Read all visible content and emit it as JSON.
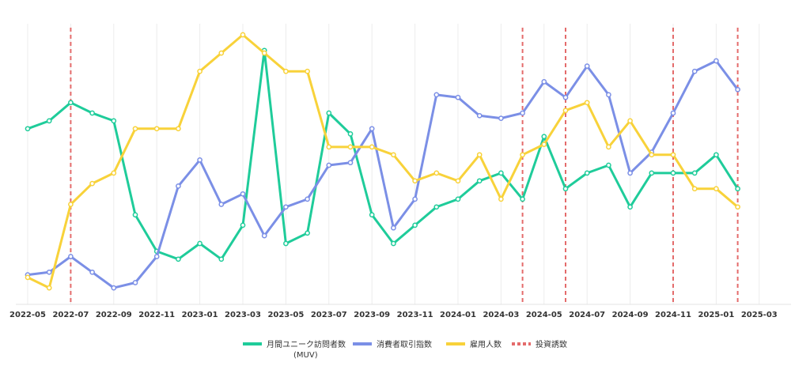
{
  "chart_data": {
    "type": "line",
    "x": [
      "2022-05",
      "2022-06",
      "2022-07",
      "2022-08",
      "2022-09",
      "2022-10",
      "2022-11",
      "2022-12",
      "2023-01",
      "2023-02",
      "2023-03",
      "2023-04",
      "2023-05",
      "2023-06",
      "2023-07",
      "2023-08",
      "2023-09",
      "2023-10",
      "2023-11",
      "2023-12",
      "2024-01",
      "2024-02",
      "2024-03",
      "2024-04",
      "2024-05",
      "2024-06",
      "2024-07",
      "2024-08",
      "2024-09",
      "2024-10",
      "2024-11",
      "2024-12",
      "2025-01",
      "2025-02"
    ],
    "tick_labels": [
      "2022-05",
      "2022-07",
      "2022-09",
      "2022-11",
      "2023-01",
      "2023-03",
      "2023-05",
      "2023-07",
      "2023-09",
      "2023-11",
      "2024-01",
      "2024-03",
      "2024-05",
      "2024-07",
      "2024-09",
      "2024-11",
      "2025-01",
      "2025-03"
    ],
    "ylim": [
      0,
      100
    ],
    "grid": "vertical",
    "legend_position": "bottom",
    "series": [
      {
        "name": "月間ユニーク訪問者数",
        "name_line2": "(MUV)",
        "color": "#1fcc9a",
        "values": [
          64,
          67,
          74,
          70,
          67,
          31,
          17,
          14,
          20,
          14,
          27,
          94,
          20,
          24,
          70,
          62,
          31,
          20,
          27,
          34,
          37,
          44,
          47,
          37,
          61,
          41,
          47,
          50,
          34,
          47,
          47,
          47,
          54,
          41
        ]
      },
      {
        "name": "消費者取引指数",
        "color": "#7b8fe6",
        "values": [
          8,
          9,
          15,
          9,
          3,
          5,
          15,
          42,
          52,
          35,
          39,
          23,
          34,
          37,
          50,
          51,
          64,
          26,
          37,
          77,
          76,
          69,
          68,
          70,
          82,
          76,
          88,
          77,
          47,
          55,
          70,
          86,
          90,
          79
        ]
      },
      {
        "name": "雇用人数",
        "color": "#f8d23a",
        "values": [
          7,
          3,
          35,
          43,
          47,
          64,
          64,
          64,
          86,
          93,
          100,
          93,
          86,
          86,
          57,
          57,
          57,
          54,
          44,
          47,
          44,
          54,
          37,
          54,
          58,
          71,
          74,
          57,
          67,
          54,
          54,
          41,
          41,
          34
        ]
      }
    ],
    "reference_lines": {
      "name": "投資誘致",
      "color": "#e46b6b",
      "style": "dashed",
      "x": [
        "2022-07",
        "2024-04",
        "2024-06",
        "2024-11",
        "2025-02"
      ]
    }
  }
}
